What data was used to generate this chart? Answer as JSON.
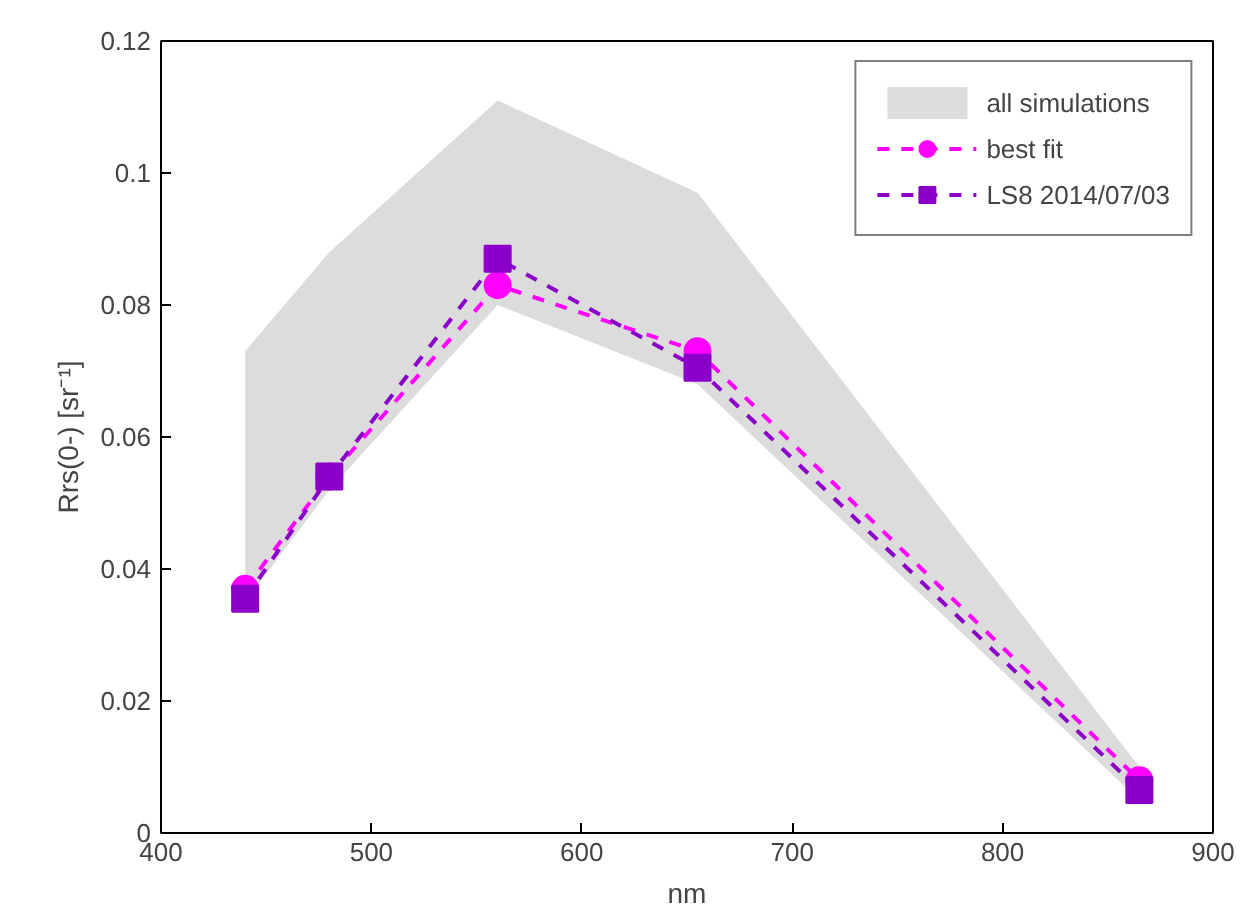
{
  "chart_data": {
    "type": "line",
    "xlabel": "nm",
    "ylabel": "Rrs(0-) [sr⁻¹]",
    "x": [
      440,
      480,
      560,
      655,
      865
    ],
    "xlim": [
      400,
      900
    ],
    "xticks": [
      400,
      500,
      600,
      700,
      800,
      900
    ],
    "ylim": [
      0,
      0.12
    ],
    "yticks": [
      0,
      0.02,
      0.04,
      0.06,
      0.08,
      0.1,
      0.12
    ],
    "grid": false,
    "legend": "top right",
    "series": [
      {
        "name": "all simulations",
        "type": "line",
        "color": "#d3d3d3",
        "line_style": "dotted",
        "marker": "none",
        "values": [
          null,
          null,
          null,
          null,
          null
        ],
        "upper": [
          0.073,
          0.088,
          0.111,
          0.097,
          0.01
        ],
        "lower": [
          0.035,
          0.052,
          0.08,
          0.068,
          0.005
        ]
      },
      {
        "name": "best fit",
        "color": "#ff00ff",
        "line_style": "dashed",
        "marker": "circle",
        "values": [
          0.037,
          0.054,
          0.083,
          0.073,
          0.008
        ]
      },
      {
        "name": "LS8 2014/07/03",
        "color": "#8b00c8",
        "line_style": "dashed",
        "marker": "square",
        "values": [
          0.0355,
          0.054,
          0.087,
          0.0705,
          0.0065
        ]
      }
    ]
  }
}
